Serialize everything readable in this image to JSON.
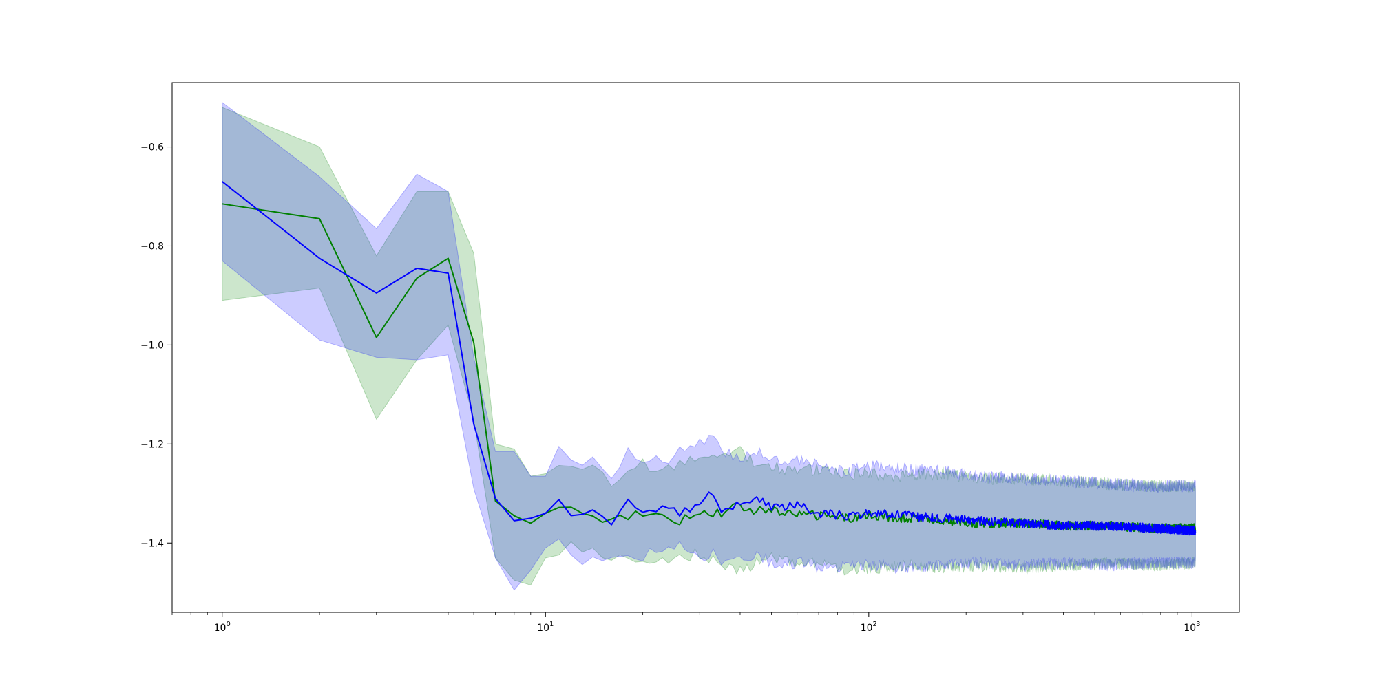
{
  "chart_data": {
    "type": "line",
    "title": "",
    "xlabel": "",
    "ylabel": "",
    "xscale": "log",
    "xlim": [
      0.7,
      1400
    ],
    "ylim": [
      -1.54,
      -0.47
    ],
    "grid": false,
    "legend": "none",
    "x_ticks": [
      {
        "value": 1,
        "base": "10",
        "exp": "0"
      },
      {
        "value": 10,
        "base": "10",
        "exp": "1"
      },
      {
        "value": 100,
        "base": "10",
        "exp": "2"
      },
      {
        "value": 1000,
        "base": "10",
        "exp": "3"
      }
    ],
    "y_ticks": [
      {
        "value": -0.6,
        "label": "−0.6"
      },
      {
        "value": -0.8,
        "label": "−0.8"
      },
      {
        "value": -1.0,
        "label": "−1.0"
      },
      {
        "value": -1.2,
        "label": "−1.2"
      },
      {
        "value": -1.4,
        "label": "−1.4"
      }
    ],
    "series": [
      {
        "color": "#008000",
        "band_color": "#008000",
        "band_opacity": 0.2,
        "points": [
          [
            1,
            -0.715,
            -0.91,
            -0.52
          ],
          [
            2,
            -0.745,
            -0.885,
            -0.6
          ],
          [
            3,
            -0.985,
            -1.15,
            -0.82
          ],
          [
            4,
            -0.865,
            -1.03,
            -0.69
          ],
          [
            5,
            -0.825,
            -0.96,
            -0.69
          ],
          [
            6,
            -0.995,
            -1.15,
            -0.815
          ],
          [
            7,
            -1.315,
            -1.43,
            -1.2
          ],
          [
            8,
            -1.345,
            -1.475,
            -1.21
          ],
          [
            9,
            -1.36,
            -1.485,
            -1.265
          ],
          [
            10,
            -1.34,
            -1.43,
            -1.26
          ],
          [
            12,
            -1.325,
            -1.405,
            -1.24
          ],
          [
            14,
            -1.345,
            -1.415,
            -1.25
          ],
          [
            16,
            -1.355,
            -1.44,
            -1.275
          ],
          [
            18,
            -1.345,
            -1.43,
            -1.26
          ],
          [
            20,
            -1.34,
            -1.445,
            -1.24
          ],
          [
            23,
            -1.345,
            -1.43,
            -1.255
          ],
          [
            26,
            -1.355,
            -1.435,
            -1.245
          ],
          [
            30,
            -1.335,
            -1.42,
            -1.23
          ],
          [
            35,
            -1.34,
            -1.44,
            -1.225
          ],
          [
            40,
            -1.325,
            -1.455,
            -1.21
          ],
          [
            45,
            -1.335,
            -1.44,
            -1.24
          ],
          [
            50,
            -1.335,
            -1.43,
            -1.245
          ],
          [
            60,
            -1.34,
            -1.445,
            -1.255
          ],
          [
            70,
            -1.345,
            -1.44,
            -1.25
          ],
          [
            85,
            -1.35,
            -1.455,
            -1.26
          ],
          [
            100,
            -1.345,
            -1.45,
            -1.26
          ],
          [
            130,
            -1.35,
            -1.445,
            -1.265
          ],
          [
            170,
            -1.355,
            -1.45,
            -1.26
          ],
          [
            220,
            -1.36,
            -1.445,
            -1.27
          ],
          [
            300,
            -1.36,
            -1.45,
            -1.27
          ],
          [
            400,
            -1.365,
            -1.445,
            -1.275
          ],
          [
            550,
            -1.365,
            -1.44,
            -1.28
          ],
          [
            750,
            -1.37,
            -1.445,
            -1.285
          ],
          [
            1024,
            -1.37,
            -1.44,
            -1.285
          ]
        ]
      },
      {
        "color": "#0000ff",
        "band_color": "#0000ff",
        "band_opacity": 0.2,
        "points": [
          [
            1,
            -0.67,
            -0.83,
            -0.51
          ],
          [
            2,
            -0.825,
            -0.99,
            -0.66
          ],
          [
            3,
            -0.895,
            -1.025,
            -0.765
          ],
          [
            4,
            -0.845,
            -1.03,
            -0.655
          ],
          [
            5,
            -0.855,
            -1.02,
            -0.69
          ],
          [
            6,
            -1.16,
            -1.29,
            -1.025
          ],
          [
            7,
            -1.31,
            -1.43,
            -1.215
          ],
          [
            8,
            -1.355,
            -1.495,
            -1.215
          ],
          [
            9,
            -1.35,
            -1.455,
            -1.265
          ],
          [
            10,
            -1.34,
            -1.41,
            -1.265
          ],
          [
            11,
            -1.305,
            -1.4,
            -1.21
          ],
          [
            12,
            -1.345,
            -1.435,
            -1.24
          ],
          [
            14,
            -1.335,
            -1.44,
            -1.235
          ],
          [
            16,
            -1.355,
            -1.425,
            -1.28
          ],
          [
            18,
            -1.32,
            -1.42,
            -1.215
          ],
          [
            20,
            -1.34,
            -1.425,
            -1.225
          ],
          [
            23,
            -1.325,
            -1.42,
            -1.235
          ],
          [
            26,
            -1.34,
            -1.405,
            -1.215
          ],
          [
            30,
            -1.325,
            -1.43,
            -1.2
          ],
          [
            33,
            -1.295,
            -1.42,
            -1.18
          ],
          [
            35,
            -1.335,
            -1.44,
            -1.215
          ],
          [
            40,
            -1.32,
            -1.43,
            -1.225
          ],
          [
            45,
            -1.31,
            -1.425,
            -1.215
          ],
          [
            50,
            -1.33,
            -1.44,
            -1.23
          ],
          [
            60,
            -1.325,
            -1.44,
            -1.23
          ],
          [
            70,
            -1.34,
            -1.45,
            -1.245
          ],
          [
            85,
            -1.345,
            -1.445,
            -1.255
          ],
          [
            100,
            -1.34,
            -1.445,
            -1.245
          ],
          [
            130,
            -1.345,
            -1.45,
            -1.25
          ],
          [
            170,
            -1.35,
            -1.445,
            -1.255
          ],
          [
            220,
            -1.355,
            -1.44,
            -1.265
          ],
          [
            300,
            -1.36,
            -1.445,
            -1.27
          ],
          [
            400,
            -1.365,
            -1.44,
            -1.275
          ],
          [
            550,
            -1.365,
            -1.445,
            -1.28
          ],
          [
            750,
            -1.37,
            -1.44,
            -1.285
          ],
          [
            1024,
            -1.375,
            -1.44,
            -1.285
          ]
        ]
      }
    ]
  }
}
